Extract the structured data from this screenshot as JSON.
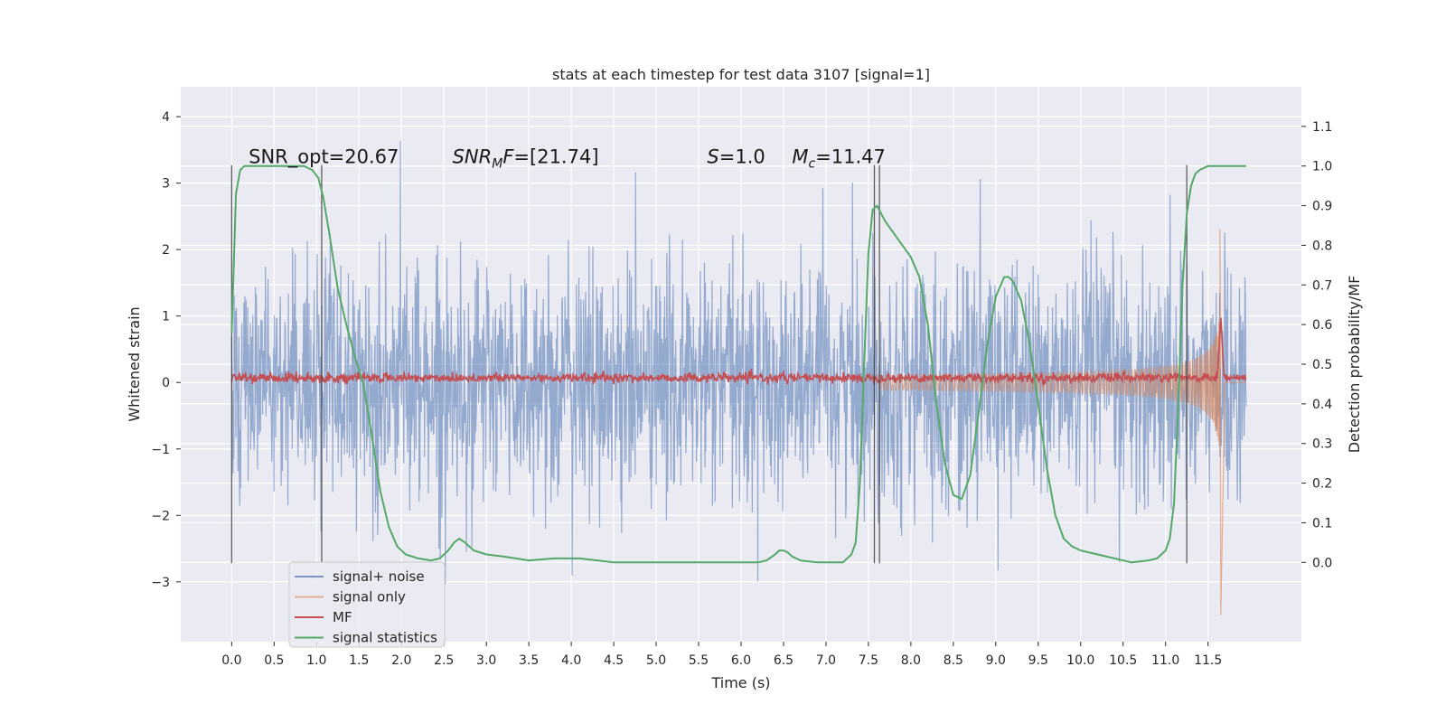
{
  "chart_data": {
    "type": "line",
    "title": "stats at each timestep for test data 3107 [signal=1]",
    "xlabel": "Time (s)",
    "ylabel": "Whitened strain",
    "y2label": "Detection probability/MF",
    "xlim": [
      -0.6,
      12.6
    ],
    "ylim": [
      -3.9,
      4.45
    ],
    "y2lim": [
      -0.2,
      1.2
    ],
    "xticks": [
      "0.0",
      "0.5",
      "1.0",
      "1.5",
      "2.0",
      "2.5",
      "3.0",
      "3.5",
      "4.0",
      "4.5",
      "5.0",
      "5.5",
      "6.0",
      "6.5",
      "7.0",
      "7.5",
      "8.0",
      "8.5",
      "9.0",
      "9.5",
      "10.0",
      "10.5",
      "11.0",
      "11.5"
    ],
    "yticks": [
      "−3",
      "−2",
      "−1",
      "0",
      "1",
      "2",
      "3",
      "4"
    ],
    "y2ticks": [
      "0.0",
      "0.1",
      "0.2",
      "0.3",
      "0.4",
      "0.5",
      "0.6",
      "0.7",
      "0.8",
      "0.9",
      "1.0",
      "1.1"
    ],
    "grid": true,
    "legend_position": "lower-left",
    "annotations": [
      {
        "key": "snr_opt",
        "text": "SNR_opt=20.67",
        "x": 0.2,
        "y": 3.3
      },
      {
        "key": "snr_mf",
        "text": "SNR_MF=[21.74]",
        "x": 2.6,
        "y": 3.3
      },
      {
        "key": "s",
        "text": "S=1.0",
        "x": 5.6,
        "y": 3.3
      },
      {
        "key": "mc",
        "text": "M_c=11.47",
        "x": 6.6,
        "y": 3.3
      }
    ],
    "vlines": [
      0.0,
      1.06,
      7.57,
      7.63,
      11.25
    ],
    "vline_range": [
      -2.72,
      3.27
    ],
    "series": [
      {
        "name": "signal+ noise",
        "color": "#4c72b0",
        "axis": "left",
        "style": "noise",
        "t_end": 11.95,
        "amplitude_sigma": 0.9
      },
      {
        "name": "signal only",
        "color": "#dd8452",
        "axis": "left",
        "style": "chirp",
        "t_start": 7.6,
        "t_merge": 11.65,
        "peak": [
          2.3,
          -3.5
        ]
      },
      {
        "name": "MF",
        "color": "#c44e52",
        "axis": "left",
        "style": "mf",
        "level": 0.07,
        "peak": {
          "t": 11.65,
          "value": 1.0
        }
      },
      {
        "name": "signal statistics",
        "color": "#55a868",
        "axis": "right",
        "t": [
          0.0,
          0.05,
          0.1,
          0.15,
          0.2,
          0.3,
          0.5,
          0.7,
          0.85,
          0.95,
          1.02,
          1.08,
          1.15,
          1.25,
          1.35,
          1.45,
          1.55,
          1.65,
          1.75,
          1.85,
          1.95,
          2.05,
          2.2,
          2.35,
          2.45,
          2.55,
          2.62,
          2.68,
          2.75,
          2.85,
          3.0,
          3.2,
          3.5,
          3.8,
          4.1,
          4.5,
          5.0,
          5.5,
          6.0,
          6.2,
          6.3,
          6.4,
          6.45,
          6.5,
          6.55,
          6.6,
          6.7,
          6.9,
          7.1,
          7.2,
          7.3,
          7.35,
          7.4,
          7.45,
          7.5,
          7.55,
          7.6,
          7.65,
          7.7,
          7.8,
          7.9,
          8.0,
          8.1,
          8.2,
          8.3,
          8.4,
          8.5,
          8.6,
          8.7,
          8.8,
          8.9,
          9.0,
          9.1,
          9.15,
          9.2,
          9.3,
          9.4,
          9.5,
          9.6,
          9.7,
          9.8,
          9.9,
          10.0,
          10.2,
          10.4,
          10.6,
          10.8,
          10.9,
          11.0,
          11.05,
          11.1,
          11.15,
          11.2,
          11.25,
          11.3,
          11.35,
          11.4,
          11.5,
          11.6,
          11.7,
          11.8,
          11.9,
          11.95
        ],
        "y": [
          0.58,
          0.93,
          0.99,
          1.0,
          1.0,
          1.0,
          1.0,
          1.0,
          1.0,
          0.99,
          0.97,
          0.92,
          0.83,
          0.69,
          0.6,
          0.52,
          0.45,
          0.32,
          0.18,
          0.09,
          0.04,
          0.02,
          0.01,
          0.005,
          0.01,
          0.03,
          0.05,
          0.06,
          0.05,
          0.03,
          0.02,
          0.015,
          0.005,
          0.01,
          0.01,
          0.0,
          0.0,
          0.0,
          0.0,
          0.0,
          0.005,
          0.02,
          0.03,
          0.03,
          0.025,
          0.015,
          0.005,
          0.0,
          0.0,
          0.0,
          0.02,
          0.05,
          0.2,
          0.5,
          0.78,
          0.89,
          0.9,
          0.88,
          0.86,
          0.83,
          0.8,
          0.77,
          0.72,
          0.6,
          0.4,
          0.25,
          0.17,
          0.16,
          0.22,
          0.38,
          0.55,
          0.67,
          0.72,
          0.72,
          0.71,
          0.66,
          0.55,
          0.4,
          0.24,
          0.12,
          0.06,
          0.04,
          0.03,
          0.02,
          0.01,
          0.0,
          0.005,
          0.01,
          0.03,
          0.06,
          0.15,
          0.4,
          0.7,
          0.88,
          0.95,
          0.98,
          0.99,
          1.0,
          1.0,
          1.0,
          1.0,
          1.0,
          1.0
        ]
      }
    ]
  }
}
